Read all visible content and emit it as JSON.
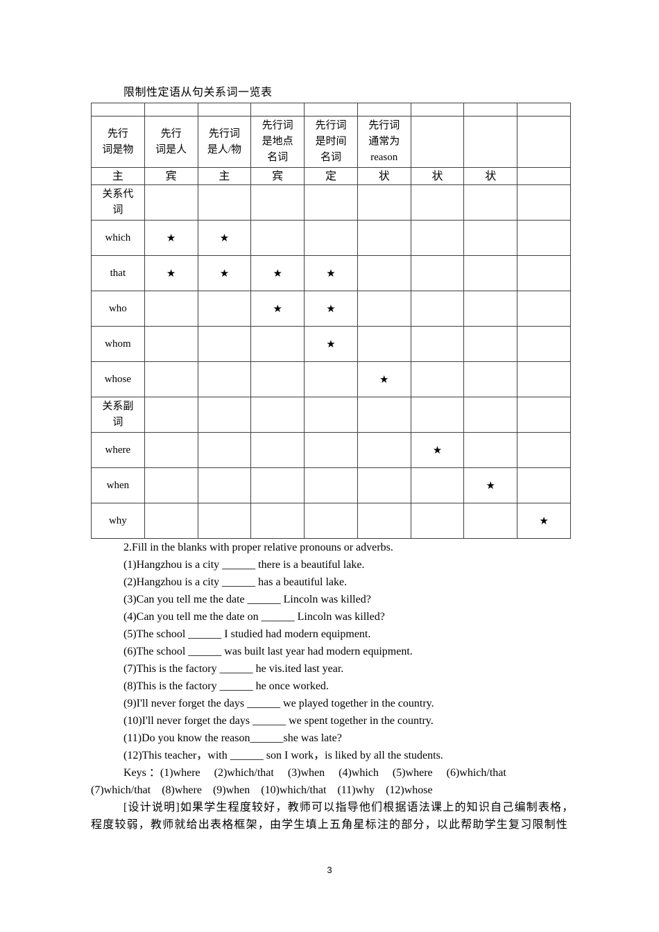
{
  "document": {
    "title": "限制性定语从句关系词一览表",
    "page_number": "3",
    "star_glyph": "★"
  },
  "table": {
    "header_cells": [
      "先行\n词是物",
      "先行\n词是人",
      "先行词\n是人/物",
      "先行词\n是地点\n名词",
      "先行词\n是时间\n名词",
      "先行词\n通常为\nreason",
      "",
      "",
      ""
    ],
    "function_cells": [
      "主",
      "宾",
      "主",
      "宾",
      "定",
      "状",
      "状",
      "状",
      ""
    ],
    "rows": [
      {
        "label": "关系代\n词",
        "stars": []
      },
      {
        "label": "which",
        "stars": [
          2,
          3
        ]
      },
      {
        "label": "that",
        "stars": [
          2,
          3,
          4,
          5
        ]
      },
      {
        "label": "who",
        "stars": [
          4,
          5
        ]
      },
      {
        "label": "whom",
        "stars": [
          5
        ]
      },
      {
        "label": "whose",
        "stars": [
          6
        ]
      },
      {
        "label": "关系副\n词",
        "stars": []
      },
      {
        "label": "where",
        "stars": [
          7
        ]
      },
      {
        "label": "when",
        "stars": [
          8
        ]
      },
      {
        "label": "why",
        "stars": [
          9
        ]
      }
    ]
  },
  "exercise": {
    "intro": "2.Fill in the blanks with proper relative pronouns or adverbs.",
    "items": [
      "(1)Hangzhou is a city ______ there is a beautiful lake.",
      "(2)Hangzhou is a city ______ has a beautiful lake.",
      "(3)Can you tell me the date ______ Lincoln was killed?",
      "(4)Can you tell me the date on ______ Lincoln was killed?",
      "(5)The school ______ I studied had modern equipment.",
      "(6)The school ______ was built last year had modern equipment.",
      "(7)This is the factory ______ he vis.ited last year.",
      "(8)This is the factory ______ he once worked.",
      "(9)I'll never forget the days ______ we played together in the country.",
      "(10)I'll never forget the days ______ we spent together in the country.",
      "(11)Do you know the reason______she was late?",
      "(12)This teacher，with ______ son I work，is liked by all the students."
    ],
    "keys_line1": "Keys ：(1)where     (2)which/that     (3)when     (4)which     (5)where     (6)which/that",
    "keys_line2": "(7)which/that    (8)where    (9)when    (10)which/that    (11)why    (12)whose",
    "note_line1": "[设计说明]如果学生程度较好，教师可以指导他们根据语法课上的知识自己编制表格，",
    "note_line2": "程度较弱，教师就给出表格框架，由学生填上五角星标注的部分，以此帮助学生复习限制性"
  }
}
